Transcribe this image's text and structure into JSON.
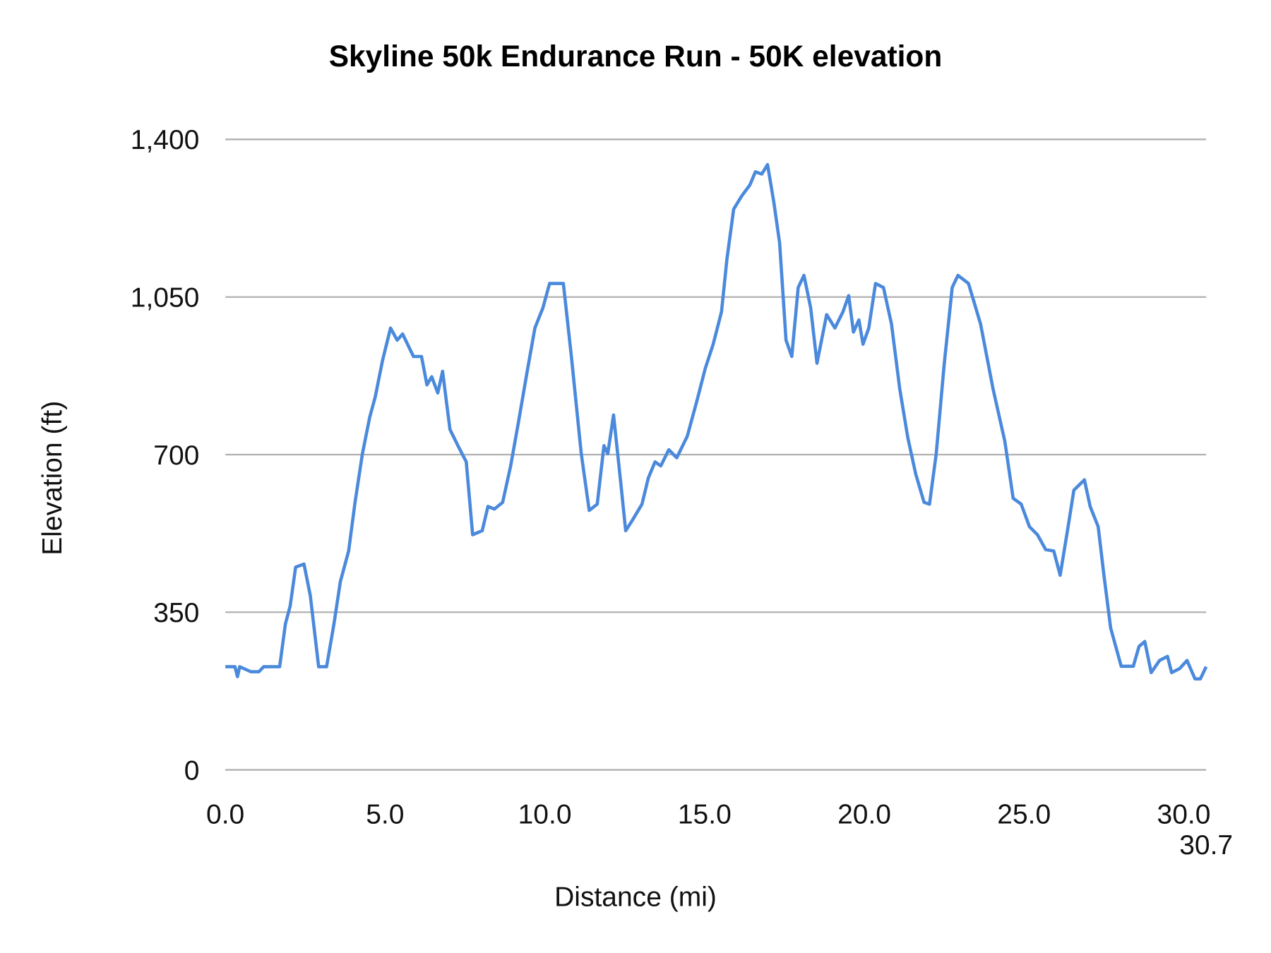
{
  "chart_data": {
    "type": "line",
    "title": "Skyline 50k Endurance Run - 50K elevation",
    "xlabel": "Distance (mi)",
    "ylabel": "Elevation (ft)",
    "xlim": [
      0,
      30.7
    ],
    "ylim": [
      0,
      1400
    ],
    "x_ticks": [
      "0.0",
      "5.0",
      "10.0",
      "15.0",
      "20.0",
      "25.0",
      "30.0",
      "30.7"
    ],
    "x_tick_values": [
      0,
      5,
      10,
      15,
      20,
      25,
      30,
      30.7
    ],
    "y_ticks": [
      "0",
      "350",
      "700",
      "1,050",
      "1,400"
    ],
    "y_tick_values": [
      0,
      350,
      700,
      1050,
      1400
    ],
    "grid": "horizontal",
    "legend": "none",
    "line_color": "#4a89dc",
    "series": [
      {
        "x": [
          0,
          0.3,
          0.38,
          0.45,
          0.8,
          1.05,
          1.2,
          1.7,
          1.88,
          2.03,
          2.2,
          2.46,
          2.66,
          2.92,
          3.17,
          3.4,
          3.6,
          3.86,
          4.06,
          4.29,
          4.52,
          4.69,
          4.92,
          5.17,
          5.38,
          5.55,
          5.89,
          6.14,
          6.31,
          6.46,
          6.65,
          6.8,
          7.03,
          7.28,
          7.54,
          7.74,
          8.04,
          8.22,
          8.42,
          8.68,
          8.93,
          9.18,
          9.44,
          9.69,
          9.94,
          10.15,
          10.58,
          10.83,
          11.14,
          11.39,
          11.64,
          11.85,
          11.97,
          12.15,
          12.36,
          12.53,
          12.74,
          13.04,
          13.24,
          13.45,
          13.63,
          13.88,
          14.13,
          14.46,
          14.76,
          15.02,
          15.27,
          15.53,
          15.7,
          15.91,
          16.16,
          16.42,
          16.59,
          16.79,
          16.97,
          17.17,
          17.35,
          17.55,
          17.73,
          17.93,
          18.11,
          18.32,
          18.52,
          18.82,
          19.08,
          19.33,
          19.51,
          19.66,
          19.83,
          19.96,
          20.14,
          20.35,
          20.6,
          20.85,
          21.11,
          21.36,
          21.61,
          21.87,
          22.04,
          22.25,
          22.5,
          22.75,
          22.93,
          23.26,
          23.64,
          24.03,
          24.4,
          24.66,
          24.91,
          25.17,
          25.42,
          25.68,
          25.93,
          26.13,
          26.38,
          26.56,
          26.89,
          27.07,
          27.32,
          27.5,
          27.71,
          28.04,
          28.42,
          28.6,
          28.78,
          28.98,
          29.24,
          29.49,
          29.62,
          29.87,
          30.1,
          30.35,
          30.52,
          30.7
        ],
        "y": [
          229,
          229,
          207,
          229,
          218,
          218,
          229,
          229,
          324,
          364,
          450,
          457,
          387,
          229,
          229,
          324,
          418,
          486,
          594,
          702,
          783,
          828,
          909,
          981,
          954,
          968,
          918,
          918,
          855,
          873,
          837,
          885,
          756,
          720,
          684,
          522,
          531,
          585,
          579,
          594,
          675,
          774,
          882,
          981,
          1026,
          1080,
          1080,
          918,
          702,
          576,
          590,
          720,
          702,
          788,
          648,
          531,
          554,
          590,
          648,
          684,
          675,
          711,
          693,
          741,
          819,
          891,
          945,
          1017,
          1134,
          1245,
          1274,
          1299,
          1328,
          1323,
          1344,
          1260,
          1170,
          954,
          918,
          1071,
          1098,
          1026,
          903,
          1011,
          981,
          1017,
          1053,
          972,
          999,
          945,
          981,
          1080,
          1071,
          990,
          846,
          738,
          657,
          594,
          590,
          702,
          900,
          1071,
          1098,
          1080,
          990,
          846,
          729,
          603,
          590,
          540,
          522,
          489,
          486,
          432,
          540,
          621,
          644,
          585,
          540,
          432,
          315,
          230,
          230,
          274,
          285,
          216,
          243,
          252,
          216,
          225,
          243,
          202,
          202,
          229
        ]
      }
    ]
  }
}
